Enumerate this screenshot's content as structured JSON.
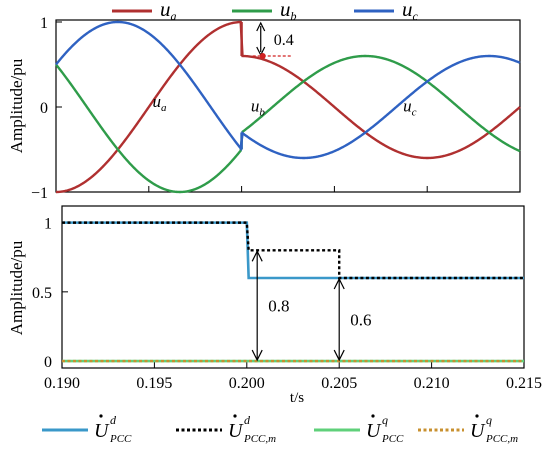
{
  "chart_data": [
    {
      "type": "line",
      "ylabel": "Amplitude/pu",
      "xlim": [
        0.19,
        0.215
      ],
      "ylim": [
        -1,
        1
      ],
      "yticks": [
        -1,
        0,
        1
      ],
      "legend_position": "top",
      "series": [
        {
          "name": "a",
          "color": "#b03030"
        },
        {
          "name": "b",
          "color": "#2f9c4a"
        },
        {
          "name": "c",
          "color": "#2f62c2"
        }
      ],
      "fault_time": 0.2,
      "pre_fault_amplitude": 1.0,
      "post_fault_amplitude": 0.6,
      "frequency_hz": 50,
      "phase_labels": [
        "a",
        "b",
        "c"
      ],
      "annotation": {
        "text": "0.4",
        "x": 0.2006,
        "y_from": 1.0,
        "y_to": 0.6
      }
    },
    {
      "type": "line",
      "xlabel": "t/s",
      "ylabel": "Amplitude/pu",
      "xlim": [
        0.19,
        0.215
      ],
      "ylim": [
        -0.05,
        1.12
      ],
      "xticks": [
        "0.190",
        "0.195",
        "0.200",
        "0.205",
        "0.210",
        "0.215"
      ],
      "yticks": [
        "0",
        "0.5",
        "1"
      ],
      "legend_position": "bottom",
      "series": [
        {
          "name": "d PCC",
          "color": "#3a98c9",
          "style": "solid",
          "points": [
            [
              0.19,
              1.0
            ],
            [
              0.2,
              1.0
            ],
            [
              0.2001,
              0.6
            ],
            [
              0.215,
              0.6
            ]
          ]
        },
        {
          "name": "d PCC,m",
          "color": "#000000",
          "style": "dotted",
          "points": [
            [
              0.19,
              1.0
            ],
            [
              0.2,
              1.0
            ],
            [
              0.2001,
              0.8
            ],
            [
              0.205,
              0.8
            ],
            [
              0.205,
              0.6
            ],
            [
              0.215,
              0.6
            ]
          ]
        },
        {
          "name": "q PCC",
          "color": "#5fd07a",
          "style": "solid",
          "points": [
            [
              0.19,
              0.0
            ],
            [
              0.215,
              0.0
            ]
          ]
        },
        {
          "name": "q PCC,m",
          "color": "#c8902f",
          "style": "dotted",
          "points": [
            [
              0.19,
              0.0
            ],
            [
              0.215,
              0.0
            ]
          ]
        }
      ],
      "annotations": [
        {
          "text": "0.8",
          "x": 0.2004,
          "y_from": 0.0,
          "y_to": 0.8
        },
        {
          "text": "0.6",
          "x": 0.205,
          "y_from": 0.0,
          "y_to": 0.6
        }
      ]
    }
  ],
  "symbols": {
    "u": "u",
    "U": "U",
    "d": "d",
    "q": "q",
    "pcc": "PCC",
    "pccm": "PCC,m"
  }
}
